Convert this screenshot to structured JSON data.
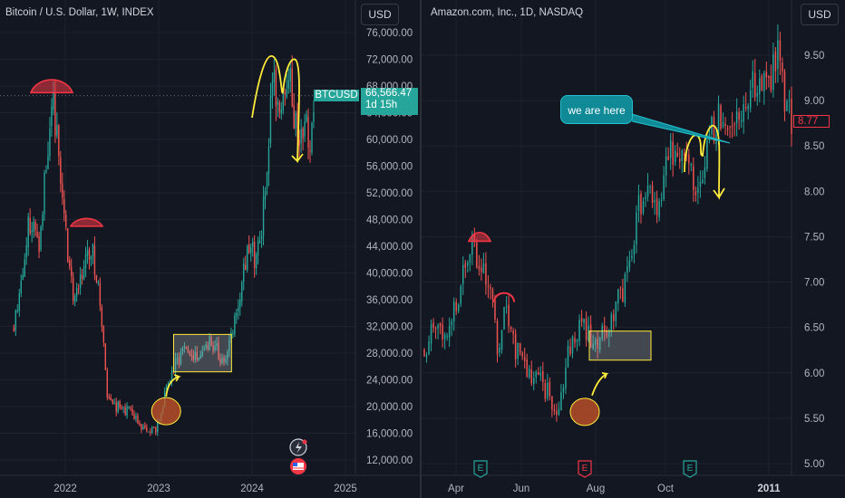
{
  "colors": {
    "background": "#131722",
    "up": "#26a69a",
    "down": "#ef5350",
    "annotation_yellow": "#ffeb3b",
    "pattern_red": "#f23645",
    "callout": "#0f8a96"
  },
  "left": {
    "title": "Bitcoin / U.S. Dollar, 1W, INDEX",
    "currency_button": "USD",
    "price_tag": {
      "symbol": "BTCUSD",
      "price": "66,566.47",
      "countdown": "1d 15h"
    },
    "icons": [
      "lightning-badge-icon",
      "us-flag-event-icon"
    ]
  },
  "right": {
    "title": "Amazon.com, Inc., 1D, NASDAQ",
    "currency_button": "USD",
    "price_tag": {
      "price": "8.77"
    },
    "callout_text": "we are here",
    "event_markers": [
      "E",
      "E",
      "E"
    ]
  },
  "chart_data": [
    {
      "type": "candlestick",
      "title": "Bitcoin / U.S. Dollar, 1W, INDEX",
      "x_ticks": [
        "2022",
        "2023",
        "2024",
        "2025"
      ],
      "y_ticks": [
        "76,000.00",
        "72,000.00",
        "68,000.00",
        "64,000.00",
        "60,000.00",
        "56,000.00",
        "52,000.00",
        "48,000.00",
        "44,000.00",
        "40,000.00",
        "36,000.00",
        "32,000.00",
        "28,000.00",
        "24,000.00",
        "20,000.00",
        "16,000.00",
        "12,000.00"
      ],
      "ylim": [
        10000,
        79000
      ],
      "last_price": 66566.47,
      "path": [
        [
          2021.45,
          32000
        ],
        [
          2021.62,
          48000
        ],
        [
          2021.72,
          45000
        ],
        [
          2021.86,
          67000
        ],
        [
          2022.0,
          47000
        ],
        [
          2022.08,
          36000
        ],
        [
          2022.28,
          44000
        ],
        [
          2022.36,
          38000
        ],
        [
          2022.45,
          21000
        ],
        [
          2022.55,
          20000
        ],
        [
          2022.66,
          19500
        ],
        [
          2022.87,
          16000
        ],
        [
          2022.97,
          16600
        ],
        [
          2023.1,
          23500
        ],
        [
          2023.25,
          28500
        ],
        [
          2023.4,
          27000
        ],
        [
          2023.55,
          30500
        ],
        [
          2023.7,
          26000
        ],
        [
          2023.82,
          34000
        ],
        [
          2023.97,
          44000
        ],
        [
          2024.05,
          42000
        ],
        [
          2024.15,
          52000
        ],
        [
          2024.22,
          69000
        ],
        [
          2024.3,
          64000
        ],
        [
          2024.42,
          68000
        ],
        [
          2024.5,
          58000
        ],
        [
          2024.57,
          64000
        ],
        [
          2024.62,
          56000
        ],
        [
          2024.66,
          66566
        ]
      ],
      "annotations": [
        "head and shoulders arcs",
        "consolidation box",
        "double top"
      ]
    },
    {
      "type": "candlestick",
      "title": "Amazon.com, Inc., 1D, NASDAQ",
      "x_ticks": [
        "Apr",
        "Jun",
        "Aug",
        "Oct",
        "2011"
      ],
      "y_ticks": [
        "9.50",
        "9.00",
        "8.50",
        "8.00",
        "7.50",
        "7.00",
        "6.50",
        "6.00",
        "5.50",
        "5.00"
      ],
      "ylim": [
        4.85,
        9.9
      ],
      "last_price": 8.77,
      "path": [
        [
          0,
          6.25
        ],
        [
          5,
          6.6
        ],
        [
          10,
          6.45
        ],
        [
          16,
          6.95
        ],
        [
          21,
          7.55
        ],
        [
          24,
          7.2
        ],
        [
          27,
          7.05
        ],
        [
          30,
          6.8
        ],
        [
          33,
          6.15
        ],
        [
          36,
          6.85
        ],
        [
          39,
          6.35
        ],
        [
          44,
          6.05
        ],
        [
          52,
          5.9
        ],
        [
          58,
          5.6
        ],
        [
          60,
          5.7
        ],
        [
          64,
          6.3
        ],
        [
          70,
          6.5
        ],
        [
          76,
          6.25
        ],
        [
          82,
          6.6
        ],
        [
          88,
          6.9
        ],
        [
          95,
          7.85
        ],
        [
          100,
          8.05
        ],
        [
          104,
          7.7
        ],
        [
          108,
          8.5
        ],
        [
          112,
          8.25
        ],
        [
          116,
          8.6
        ],
        [
          120,
          7.95
        ],
        [
          124,
          8.45
        ],
        [
          130,
          8.9
        ],
        [
          136,
          8.7
        ],
        [
          142,
          9.1
        ],
        [
          148,
          9.3
        ],
        [
          152,
          9.2
        ],
        [
          156,
          9.55
        ],
        [
          158,
          9.2
        ],
        [
          160,
          8.85
        ],
        [
          162,
          8.77
        ]
      ],
      "annotations": [
        "head and shoulders arcs",
        "consolidation box",
        "double top",
        "callout: we are here"
      ]
    }
  ]
}
